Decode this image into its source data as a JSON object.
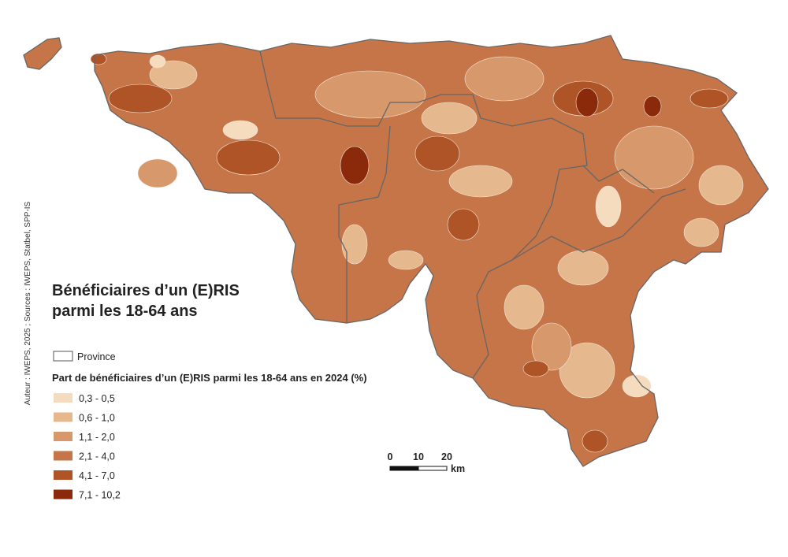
{
  "title": {
    "line1": "Bénéficiaires d’un (E)RIS",
    "line2": "parmi les 18-64 ans"
  },
  "credit": "Auteur : IWEPS, 2025 ; Sources : IWEPS, Statbel, SPP-IS",
  "province_legend": "Province",
  "legend": {
    "title": "Part de bénéficiaires d’un (E)RIS parmi les 18-64 ans en 2024 (%)",
    "items": [
      {
        "label": "0,3 - 0,5",
        "color": "#f6dcbf"
      },
      {
        "label": "0,6 - 1,0",
        "color": "#e6b88e"
      },
      {
        "label": "1,1 - 2,0",
        "color": "#d7986b"
      },
      {
        "label": "2,1 - 4,0",
        "color": "#c57547"
      },
      {
        "label": "4,1 - 7,0",
        "color": "#ae5426"
      },
      {
        "label": "7,1 - 10,2",
        "color": "#8b2a0b"
      }
    ]
  },
  "scale": {
    "ticks": [
      "0",
      "10",
      "20"
    ],
    "unit": "km"
  }
}
